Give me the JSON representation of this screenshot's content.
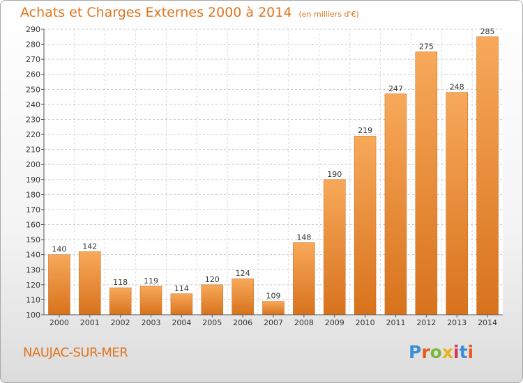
{
  "header": {
    "title": "Achats et Charges Externes 2000 à 2014",
    "subtitle": "(en milliers d'€)"
  },
  "footer": {
    "place": "NAUJAC-SUR-MER",
    "logo": "Proxiti"
  },
  "colors": {
    "bar_top": "#f7a95a",
    "bar_bottom": "#d8721c",
    "title": "#e0741f"
  },
  "chart_data": {
    "type": "bar",
    "title": "Achats et Charges Externes 2000 à 2014",
    "subtitle": "(en milliers d'€)",
    "categories": [
      "2000",
      "2001",
      "2002",
      "2003",
      "2004",
      "2005",
      "2006",
      "2007",
      "2008",
      "2009",
      "2010",
      "2011",
      "2012",
      "2013",
      "2014"
    ],
    "values": [
      140,
      142,
      118,
      119,
      114,
      120,
      124,
      109,
      148,
      190,
      219,
      247,
      275,
      248,
      285
    ],
    "ylim": [
      100,
      290
    ],
    "yticks": [
      100,
      110,
      120,
      130,
      140,
      150,
      160,
      170,
      180,
      190,
      200,
      210,
      220,
      230,
      240,
      250,
      260,
      270,
      280,
      290
    ],
    "grid": true,
    "legend": "none"
  }
}
